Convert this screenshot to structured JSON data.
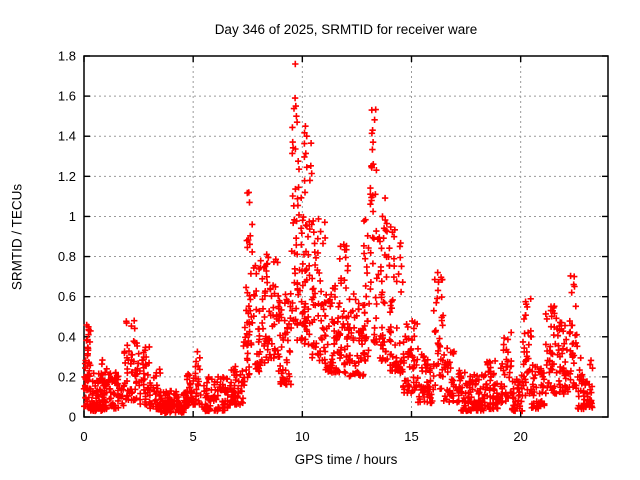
{
  "chart_data": {
    "type": "scatter",
    "title": "Day 346 of 2025, SRMTID for receiver ware",
    "xlabel": "GPS time / hours",
    "ylabel": "SRMTID / TECUs",
    "xlim": [
      0,
      24
    ],
    "ylim": [
      0,
      1.8
    ],
    "xticks": {
      "values": [
        0,
        5,
        10,
        15,
        20
      ],
      "labels": [
        "0",
        "5",
        "10",
        "15",
        "20"
      ]
    },
    "yticks": {
      "values": [
        0,
        0.2,
        0.4,
        0.6,
        0.8,
        1.0,
        1.2,
        1.4,
        1.6,
        1.8
      ],
      "labels": [
        "0",
        "0.2",
        "0.4",
        "0.6",
        "0.8",
        "1",
        "1.2",
        "1.4",
        "1.6",
        "1.8"
      ]
    },
    "grid": true,
    "legend": "none",
    "marker": {
      "shape": "plus",
      "color": "#ff0000",
      "size": 7,
      "stroke_width": 1.6
    },
    "grid_color": "#9a9a9a",
    "border_color": "#000000",
    "data_time_range": [
      0.03,
      23.3
    ],
    "max_point": [
      9.68,
      1.76
    ],
    "notable_peaks": [
      {
        "t": 0.2,
        "y": 0.45
      },
      {
        "t": 2.3,
        "y": 0.48
      },
      {
        "t": 7.55,
        "y": 1.12
      },
      {
        "t": 9.7,
        "y": 1.76
      },
      {
        "t": 10.2,
        "y": 1.45
      },
      {
        "t": 13.2,
        "y": 1.53
      },
      {
        "t": 16.2,
        "y": 0.72
      },
      {
        "t": 20.3,
        "y": 0.62
      },
      {
        "t": 22.45,
        "y": 0.7
      }
    ],
    "cloud_segments": [
      [
        0.0,
        0.3,
        30,
        0.05,
        0.33,
        1.5
      ],
      [
        0.1,
        0.3,
        18,
        0.18,
        0.46,
        1.0
      ],
      [
        0.3,
        0.95,
        65,
        0.03,
        0.22,
        1.8
      ],
      [
        0.8,
        1.1,
        16,
        0.08,
        0.3,
        1.3
      ],
      [
        0.95,
        1.85,
        60,
        0.04,
        0.23,
        1.8
      ],
      [
        1.85,
        2.5,
        55,
        0.08,
        0.48,
        1.4
      ],
      [
        2.5,
        3.0,
        40,
        0.06,
        0.36,
        1.7
      ],
      [
        3.0,
        3.5,
        35,
        0.04,
        0.26,
        1.8
      ],
      [
        3.5,
        4.7,
        95,
        0.02,
        0.13,
        1.4
      ],
      [
        4.7,
        5.05,
        30,
        0.04,
        0.22,
        1.6
      ],
      [
        5.0,
        5.35,
        22,
        0.06,
        0.33,
        1.4
      ],
      [
        5.35,
        6.6,
        85,
        0.03,
        0.2,
        1.7
      ],
      [
        6.6,
        7.3,
        52,
        0.06,
        0.26,
        1.6
      ],
      [
        7.3,
        7.6,
        25,
        0.15,
        0.65,
        1.4
      ],
      [
        7.45,
        7.8,
        26,
        0.35,
        1.13,
        1.5
      ],
      [
        7.8,
        8.3,
        42,
        0.22,
        0.78,
        1.4
      ],
      [
        8.3,
        8.9,
        50,
        0.28,
        0.82,
        1.4
      ],
      [
        8.9,
        9.5,
        55,
        0.16,
        0.62,
        1.5
      ],
      [
        9.5,
        9.8,
        30,
        0.45,
        1.62,
        1.3
      ],
      [
        9.75,
        10.05,
        30,
        0.38,
        1.32,
        1.4
      ],
      [
        10.05,
        10.45,
        45,
        0.35,
        1.46,
        1.5
      ],
      [
        10.45,
        11.05,
        55,
        0.28,
        1.0,
        1.6
      ],
      [
        11.05,
        11.7,
        60,
        0.22,
        0.66,
        1.5
      ],
      [
        11.7,
        12.1,
        40,
        0.22,
        0.87,
        1.7
      ],
      [
        12.1,
        12.8,
        55,
        0.2,
        0.62,
        1.5
      ],
      [
        12.8,
        13.1,
        28,
        0.28,
        1.0,
        1.5
      ],
      [
        13.1,
        13.45,
        34,
        0.35,
        1.56,
        1.4
      ],
      [
        13.45,
        14.05,
        52,
        0.28,
        1.1,
        1.6
      ],
      [
        14.0,
        14.6,
        50,
        0.22,
        0.95,
        1.8
      ],
      [
        14.6,
        15.3,
        55,
        0.12,
        0.48,
        1.6
      ],
      [
        15.3,
        16.0,
        50,
        0.07,
        0.32,
        1.6
      ],
      [
        16.0,
        16.45,
        38,
        0.14,
        0.72,
        1.3
      ],
      [
        16.45,
        17.2,
        50,
        0.07,
        0.36,
        1.8
      ],
      [
        17.2,
        18.3,
        85,
        0.03,
        0.23,
        1.7
      ],
      [
        18.3,
        19.2,
        70,
        0.04,
        0.29,
        1.7
      ],
      [
        19.2,
        19.6,
        28,
        0.07,
        0.44,
        1.4
      ],
      [
        19.6,
        20.1,
        40,
        0.03,
        0.21,
        1.7
      ],
      [
        20.1,
        20.5,
        34,
        0.1,
        0.62,
        1.4
      ],
      [
        20.5,
        21.1,
        46,
        0.04,
        0.26,
        1.7
      ],
      [
        21.1,
        21.7,
        45,
        0.1,
        0.56,
        1.4
      ],
      [
        21.7,
        22.25,
        45,
        0.1,
        0.48,
        1.5
      ],
      [
        22.25,
        22.6,
        28,
        0.14,
        0.71,
        1.3
      ],
      [
        22.6,
        23.3,
        55,
        0.04,
        0.3,
        1.7
      ]
    ],
    "outlier_points": [
      [
        9.68,
        1.76
      ],
      [
        9.67,
        1.59
      ],
      [
        9.7,
        1.55
      ],
      [
        9.73,
        1.5
      ],
      [
        9.76,
        1.47
      ],
      [
        10.14,
        1.45
      ],
      [
        10.2,
        1.4
      ],
      [
        13.18,
        1.53
      ],
      [
        13.22,
        1.43
      ],
      [
        13.24,
        1.37
      ],
      [
        13.16,
        1.25
      ],
      [
        7.55,
        1.12
      ],
      [
        7.58,
        1.07
      ],
      [
        11.9,
        0.86
      ],
      [
        16.2,
        0.72
      ],
      [
        22.45,
        0.7
      ],
      [
        22.43,
        0.66
      ],
      [
        2.3,
        0.48
      ],
      [
        0.2,
        0.45
      ]
    ]
  }
}
